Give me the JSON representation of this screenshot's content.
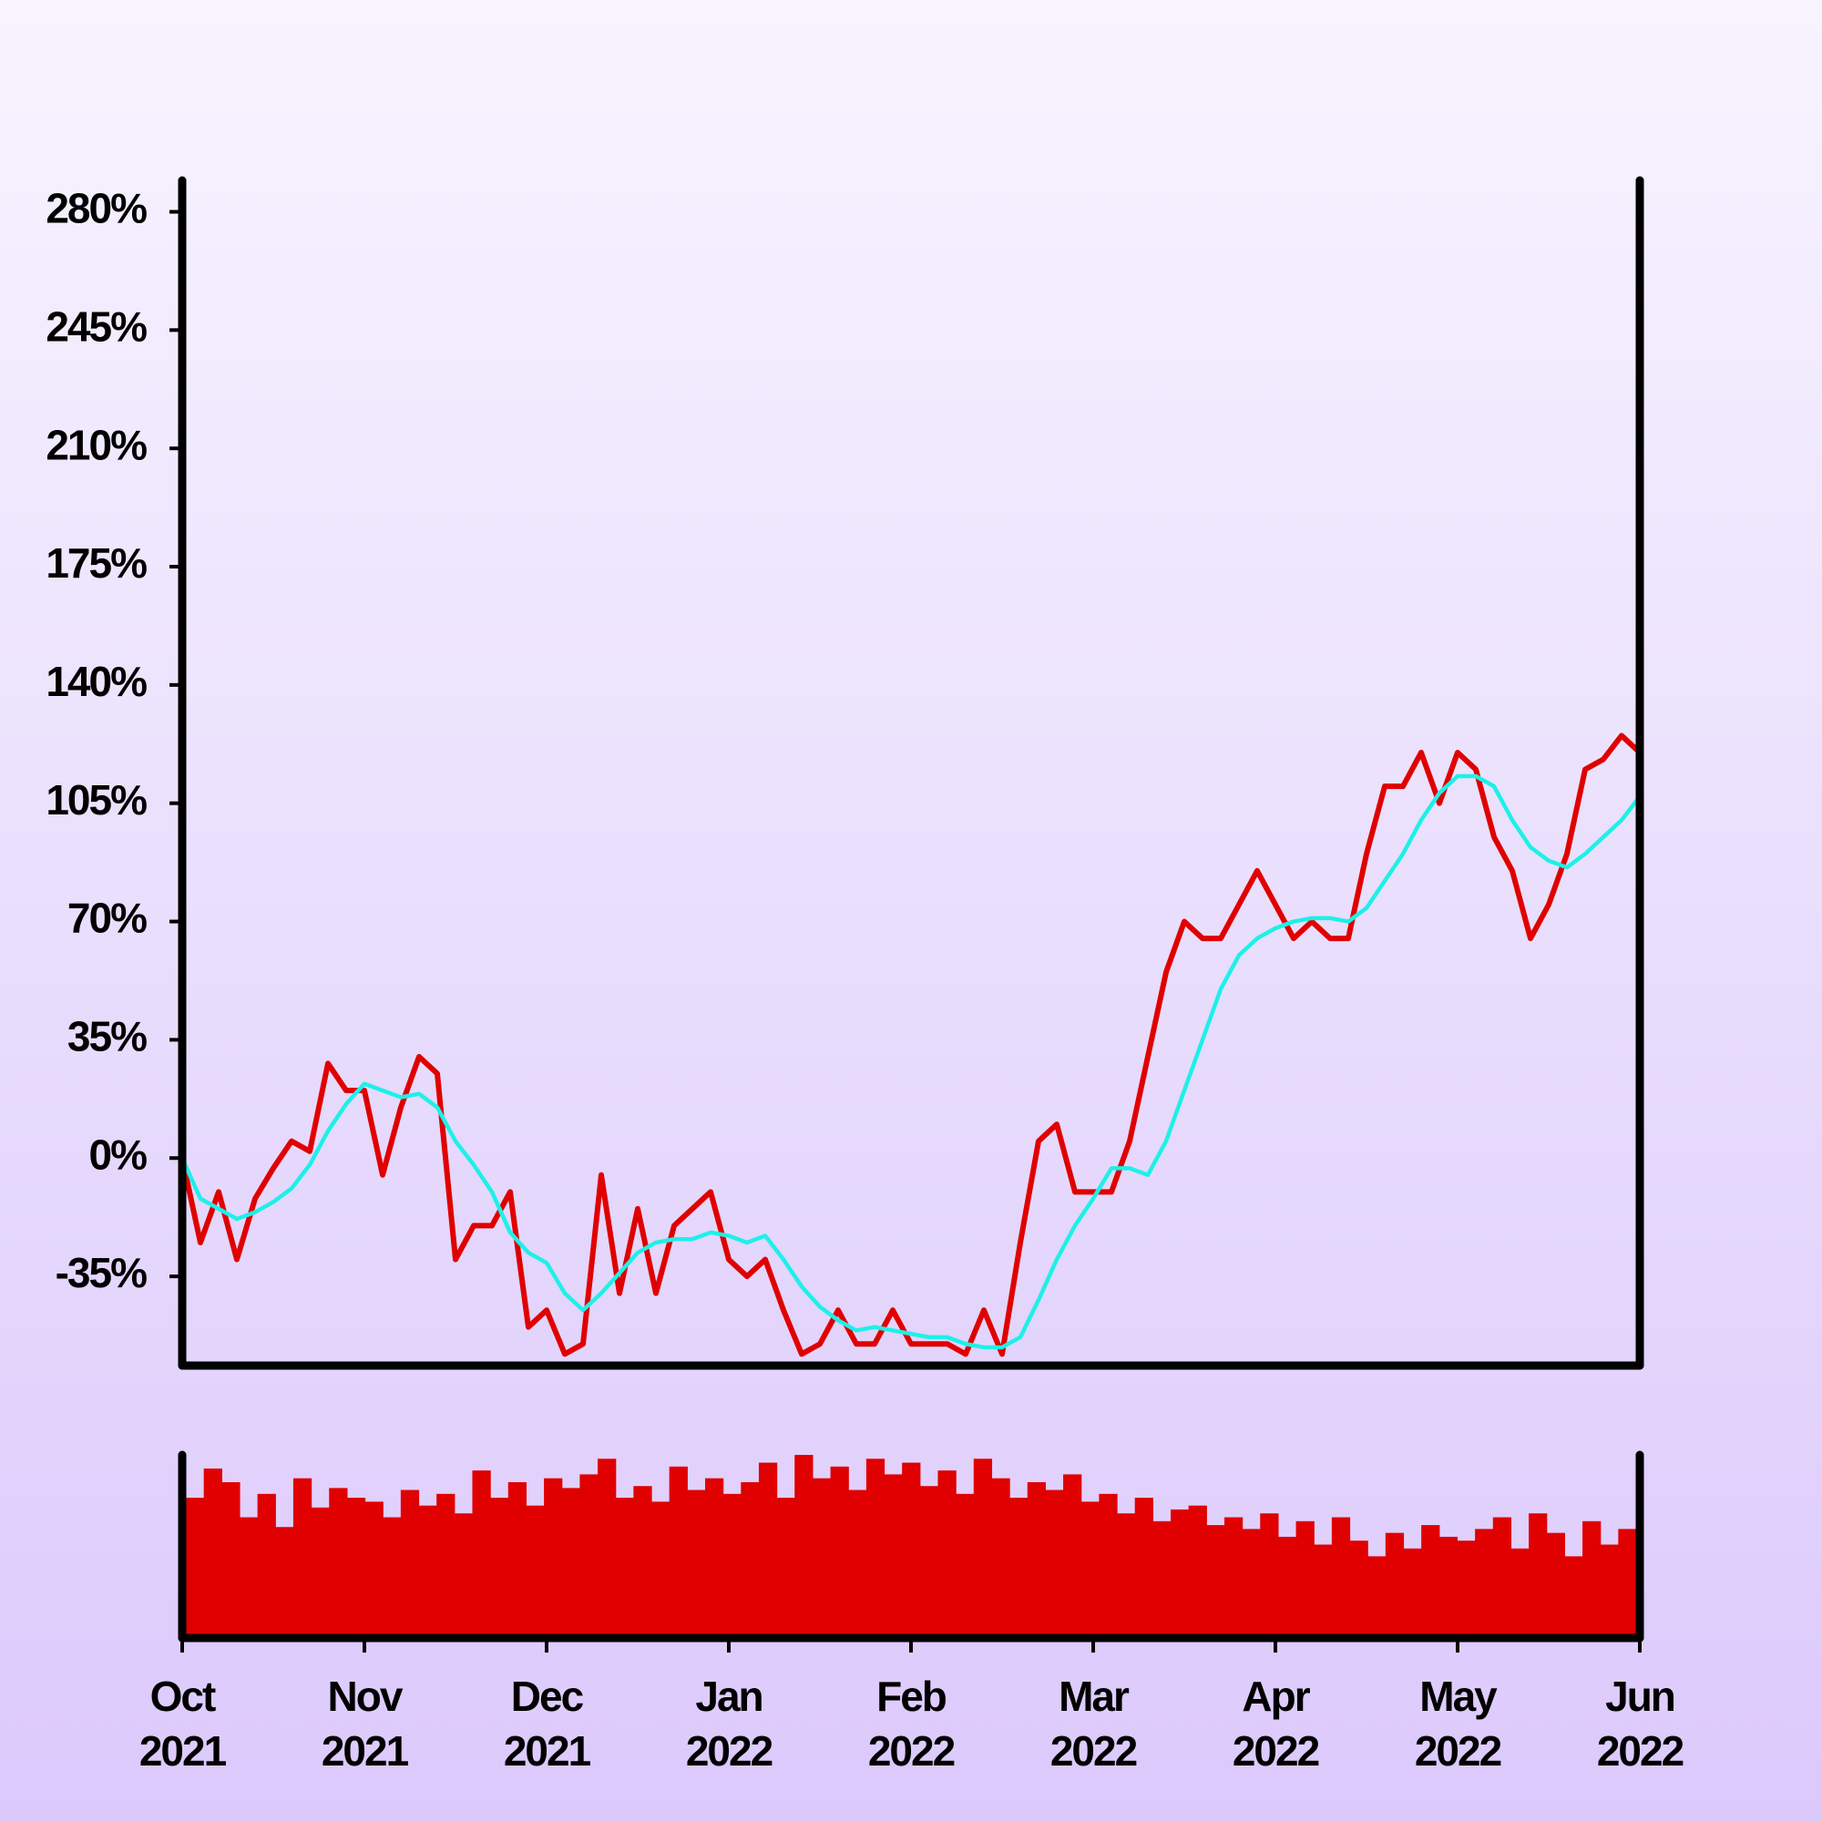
{
  "chart_data": [
    {
      "type": "line",
      "categories": [
        "Oct 2021",
        null,
        null,
        null,
        null,
        null,
        null,
        null,
        null,
        null,
        "Nov 2021",
        null,
        null,
        null,
        null,
        null,
        null,
        null,
        null,
        null,
        "Dec 2021",
        null,
        null,
        null,
        null,
        null,
        null,
        null,
        null,
        null,
        "Jan 2022",
        null,
        null,
        null,
        null,
        null,
        null,
        null,
        null,
        null,
        "Feb 2022",
        null,
        null,
        null,
        null,
        null,
        null,
        null,
        null,
        null,
        "Mar 2022",
        null,
        null,
        null,
        null,
        null,
        null,
        null,
        null,
        null,
        "Apr 2022",
        null,
        null,
        null,
        null,
        null,
        null,
        null,
        null,
        null,
        "May 2022",
        null,
        null,
        null,
        null,
        null,
        null,
        null,
        null,
        null,
        "Jun 2022"
      ],
      "series": [
        {
          "color": "#e00000",
          "values": [
            0,
            -25,
            -10,
            -30,
            -12,
            -3,
            5,
            2,
            28,
            20,
            20,
            -5,
            15,
            30,
            25,
            -30,
            -20,
            -20,
            -10,
            -50,
            -45,
            -58,
            -55,
            -5,
            -40,
            -15,
            -40,
            -20,
            -15,
            -10,
            -30,
            -35,
            -30,
            -45,
            -58,
            -55,
            -45,
            -55,
            -55,
            -45,
            -55,
            -55,
            -55,
            -58,
            -45,
            -58,
            -25,
            5,
            10,
            -10,
            -10,
            -10,
            5,
            30,
            55,
            70,
            65,
            65,
            75,
            85,
            75,
            65,
            70,
            65,
            65,
            90,
            110,
            110,
            120,
            105,
            120,
            115,
            95,
            85,
            65,
            75,
            90,
            115,
            118,
            125,
            120
          ]
        },
        {
          "color": "#1ef0e8",
          "values": [
            0,
            -12,
            -15,
            -18,
            -16,
            -13,
            -9,
            -2,
            8,
            16,
            22,
            20,
            18,
            19,
            15,
            5,
            -2,
            -10,
            -22,
            -28,
            -31,
            -40,
            -45,
            -40,
            -34,
            -28,
            -25,
            -24,
            -24,
            -22,
            -23,
            -25,
            -23,
            -30,
            -38,
            -44,
            -48,
            -51,
            -50,
            -51,
            -52,
            -53,
            -53,
            -55,
            -56,
            -56,
            -53,
            -42,
            -30,
            -20,
            -12,
            -3,
            -3,
            -5,
            5,
            20,
            35,
            50,
            60,
            65,
            68,
            70,
            71,
            71,
            70,
            74,
            82,
            90,
            100,
            108,
            113,
            113,
            110,
            100,
            92,
            88,
            86,
            90,
            95,
            100,
            107
          ]
        }
      ],
      "ylim": [
        -61.4,
        289.3
      ],
      "yticks": [
        {
          "value": -35,
          "label": "-35%"
        },
        {
          "value": 0,
          "label": "0%"
        },
        {
          "value": 35,
          "label": "35%"
        },
        {
          "value": 70,
          "label": "70%"
        },
        {
          "value": 105,
          "label": "105%"
        },
        {
          "value": 140,
          "label": "140%"
        },
        {
          "value": 175,
          "label": "175%"
        },
        {
          "value": 210,
          "label": "210%"
        },
        {
          "value": 245,
          "label": "245%"
        },
        {
          "value": 280,
          "label": "280%"
        }
      ],
      "grid": false
    },
    {
      "type": "bar",
      "color": "#e00000",
      "values": [
        70,
        85,
        78,
        60,
        72,
        55,
        80,
        65,
        75,
        70,
        68,
        60,
        74,
        66,
        72,
        62,
        84,
        70,
        78,
        66,
        80,
        75,
        82,
        90,
        70,
        76,
        68,
        86,
        74,
        80,
        72,
        78,
        88,
        70,
        92,
        80,
        86,
        74,
        90,
        82,
        88,
        76,
        84,
        72,
        90,
        80,
        70,
        78,
        74,
        82,
        68,
        72,
        62,
        70,
        58,
        64,
        66,
        56,
        60,
        54,
        62,
        50,
        58,
        46,
        60,
        48,
        40,
        52,
        44,
        56,
        50,
        48,
        54,
        60,
        44,
        62,
        52,
        40,
        58,
        46,
        54
      ]
    }
  ]
}
